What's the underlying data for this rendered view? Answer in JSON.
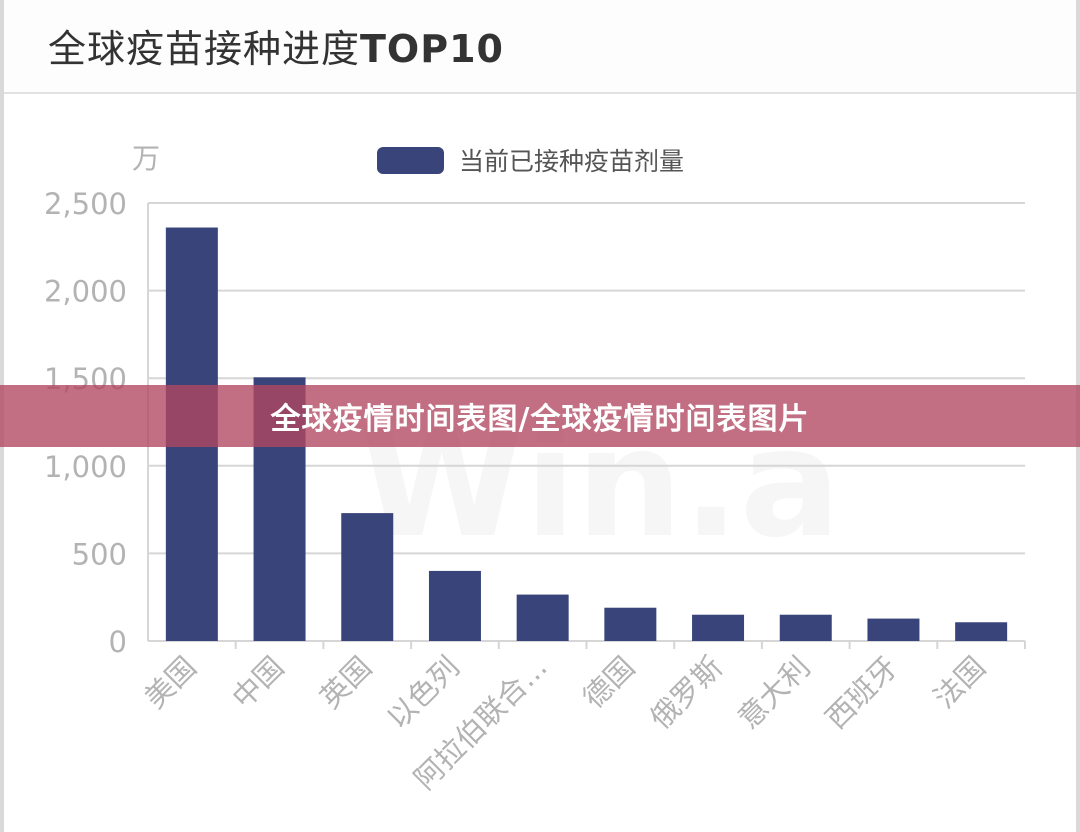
{
  "header": {
    "title_main": "全球疫苗接种进度",
    "title_suffix": "TOP10"
  },
  "overlay": {
    "banner_text": "全球疫情时间表图/全球疫情时间表图片",
    "watermark": "Win.a"
  },
  "colors": {
    "bar": "#39457a",
    "grid": "#d6d6d6",
    "axis_text": "#b3b3b3",
    "banner": "#b24660"
  },
  "chart_data": {
    "type": "bar",
    "unit_label": "万",
    "categories": [
      "美国",
      "中国",
      "英国",
      "以色列",
      "阿拉伯联合...",
      "德国",
      "俄罗斯",
      "意大利",
      "西班牙",
      "法国"
    ],
    "series": [
      {
        "name": "当前已接种疫苗剂量",
        "values": [
          2360,
          1505,
          730,
          400,
          265,
          190,
          150,
          150,
          128,
          107
        ]
      }
    ],
    "ylim": [
      0,
      2500
    ],
    "yticks": [
      0,
      500,
      1000,
      1500,
      2000,
      2500
    ],
    "ytick_labels": [
      "0",
      "500",
      "1,000",
      "1,500",
      "2,000",
      "2,500"
    ],
    "grid": true,
    "legend_position": "top-center"
  }
}
